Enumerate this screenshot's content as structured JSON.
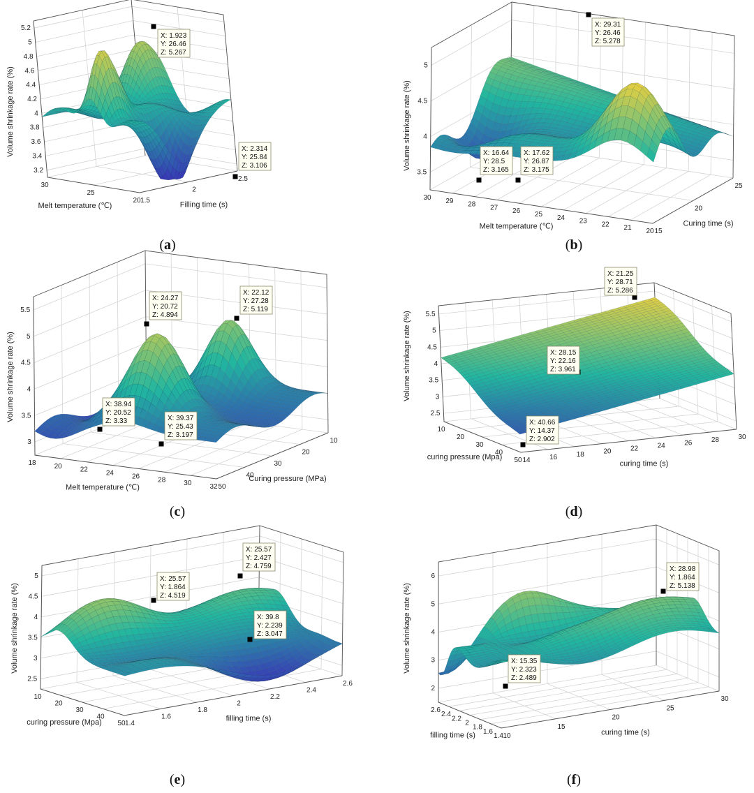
{
  "colors": {
    "low": "#3a2fb8",
    "mid": "#21b6a0",
    "high": "#f7d13a",
    "grid": "#d4d4d4",
    "axis": "#555555",
    "tip_bg": "#fffff2",
    "tip_border": "#8a8a6a"
  },
  "chart_data": [
    {
      "panel": "a",
      "type": "surface3d",
      "x_label": "Melt temperature (℃)",
      "y_label": "Filling time (s)",
      "z_label": "Volume shrinkage rate (%)",
      "x_ticks": [
        "30",
        "25",
        "20"
      ],
      "y_ticks": [
        "1.5",
        "2",
        "2.5"
      ],
      "z_ticks": [
        "3.2",
        "3.4",
        "3.6",
        "3.8",
        "4",
        "4.2",
        "4.4",
        "4.6",
        "4.8",
        "5",
        "5.2"
      ],
      "z_range": [
        3.1,
        5.3
      ],
      "annotations": [
        {
          "lines": [
            "X: 1.923",
            "Y: 26.46",
            "Z: 5.267"
          ],
          "at": "max"
        },
        {
          "lines": [
            "X: 2.314",
            "Y: 25.84",
            "Z: 3.106"
          ],
          "at": "min"
        }
      ]
    },
    {
      "panel": "b",
      "type": "surface3d",
      "x_label": "Melt temperature (℃)",
      "y_label": "Curing time (s)",
      "z_label": "Volume shrinkage rate (%)",
      "x_ticks": [
        "30",
        "29",
        "28",
        "27",
        "26",
        "25",
        "24",
        "23",
        "22",
        "21",
        "20"
      ],
      "y_ticks": [
        "15",
        "20",
        "25"
      ],
      "z_ticks": [
        "3.5",
        "4",
        "4.5",
        "5"
      ],
      "z_range": [
        3.1,
        5.4
      ],
      "annotations": [
        {
          "lines": [
            "X: 29.31",
            "Y: 26.46",
            "Z: 5.278"
          ],
          "at": "max"
        },
        {
          "lines": [
            "X: 16.64",
            "Y: 28.5",
            "Z: 3.165"
          ],
          "at": "min"
        },
        {
          "lines": [
            "X: 17.62",
            "Y: 26.87",
            "Z: 3.175"
          ],
          "at": "min2"
        }
      ]
    },
    {
      "panel": "c",
      "type": "surface3d",
      "x_label": "Melt temperature (℃)",
      "y_label": "Curing pressure (MPa)",
      "z_label": "Volume shrinkage rate (%)",
      "x_ticks": [
        "18",
        "20",
        "22",
        "24",
        "26",
        "28",
        "30",
        "32"
      ],
      "y_ticks": [
        "50",
        "40",
        "30",
        "20",
        "10"
      ],
      "z_ticks": [
        "3",
        "3.5",
        "4",
        "4.5",
        "5",
        "5.5"
      ],
      "z_range": [
        3.0,
        5.5
      ],
      "annotations": [
        {
          "lines": [
            "X: 24.27",
            "Y: 20.72",
            "Z: 4.894"
          ],
          "at": "max2"
        },
        {
          "lines": [
            "X: 22.12",
            "Y: 27.28",
            "Z: 5.119"
          ],
          "at": "max"
        },
        {
          "lines": [
            "X: 38.94",
            "Y: 20.52",
            "Z: 3.33"
          ],
          "at": "min2"
        },
        {
          "lines": [
            "X: 39.37",
            "Y: 25.43",
            "Z: 3.197"
          ],
          "at": "min"
        }
      ]
    },
    {
      "panel": "d",
      "type": "surface3d",
      "x_label": "curing pressure (Mpa)",
      "y_label": "curing time (s)",
      "z_label": "Volume shrinkage rate (%)",
      "x_ticks": [
        "10",
        "20",
        "30",
        "40",
        "50"
      ],
      "y_ticks": [
        "14",
        "16",
        "18",
        "20",
        "22",
        "24",
        "26",
        "28",
        "30"
      ],
      "z_ticks": [
        "2.5",
        "3",
        "3.5",
        "4",
        "4.5",
        "5",
        "5.5"
      ],
      "z_range": [
        2.5,
        5.5
      ],
      "annotations": [
        {
          "lines": [
            "X: 21.25",
            "Y: 28.71",
            "Z: 5.286"
          ],
          "at": "max"
        },
        {
          "lines": [
            "X: 28.15",
            "Y: 22.16",
            "Z: 3.961"
          ],
          "at": "mid"
        },
        {
          "lines": [
            "X: 40.66",
            "Y: 14.37",
            "Z: 2.902"
          ],
          "at": "min"
        }
      ]
    },
    {
      "panel": "e",
      "type": "surface3d",
      "x_label": "curing pressure (Mpa)",
      "y_label": "filling time (s)",
      "z_label": "Volume shrinkage rate (%)",
      "x_ticks": [
        "10",
        "20",
        "30",
        "40",
        "50"
      ],
      "y_ticks": [
        "1.4",
        "1.6",
        "1.8",
        "2",
        "2.2",
        "2.4",
        "2.6"
      ],
      "z_ticks": [
        "2.5",
        "3",
        "3.5",
        "4",
        "4.5",
        "5"
      ],
      "z_range": [
        2.5,
        5.0
      ],
      "annotations": [
        {
          "lines": [
            "X: 25.57",
            "Y: 1.864",
            "Z: 4.519"
          ],
          "at": "max2"
        },
        {
          "lines": [
            "X: 25.57",
            "Y: 2.427",
            "Z: 4.759"
          ],
          "at": "max"
        },
        {
          "lines": [
            "X: 39.8",
            "Y: 2.239",
            "Z: 3.047"
          ],
          "at": "min"
        }
      ]
    },
    {
      "panel": "f",
      "type": "surface3d",
      "x_label": "filling time (s)",
      "y_label": "curing time (s)",
      "z_label": "Volume shrinkage rate (%)",
      "x_ticks": [
        "2.6",
        "2.4",
        "2.2",
        "2",
        "1.8",
        "1.6",
        "1.4"
      ],
      "y_ticks": [
        "10",
        "15",
        "20",
        "25",
        "30"
      ],
      "z_ticks": [
        "2",
        "3",
        "4",
        "5",
        "6"
      ],
      "z_range": [
        2.0,
        6.0
      ],
      "annotations": [
        {
          "lines": [
            "X: 28.98",
            "Y: 1.864",
            "Z: 5.138"
          ],
          "at": "max"
        },
        {
          "lines": [
            "X: 15.35",
            "Y: 2.323",
            "Z: 2.489"
          ],
          "at": "min"
        }
      ]
    }
  ],
  "panel_labels": [
    "a",
    "b",
    "c",
    "d",
    "e",
    "f"
  ]
}
